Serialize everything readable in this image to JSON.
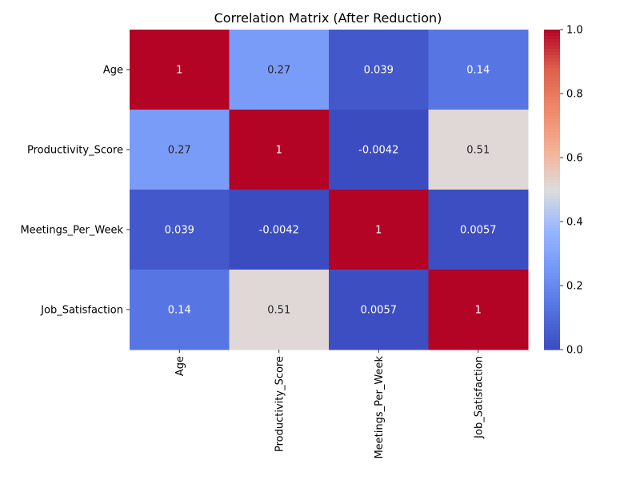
{
  "chart_data": {
    "type": "heatmap",
    "title": "Correlation Matrix (After Reduction)",
    "xlabel": "",
    "ylabel": "",
    "x_categories": [
      "Age",
      "Productivity_Score",
      "Meetings_Per_Week",
      "Job_Satisfaction"
    ],
    "y_categories": [
      "Age",
      "Productivity_Score",
      "Meetings_Per_Week",
      "Job_Satisfaction"
    ],
    "values": [
      [
        1,
        0.27,
        0.039,
        0.14
      ],
      [
        0.27,
        1,
        -0.0042,
        0.51
      ],
      [
        0.039,
        -0.0042,
        1,
        0.0057
      ],
      [
        0.14,
        0.51,
        0.0057,
        1
      ]
    ],
    "cell_labels": [
      [
        "1",
        "0.27",
        "0.039",
        "0.14"
      ],
      [
        "0.27",
        "1",
        "-0.0042",
        "0.51"
      ],
      [
        "0.039",
        "-0.0042",
        "1",
        "0.0057"
      ],
      [
        "0.14",
        "0.51",
        "0.0057",
        "1"
      ]
    ],
    "colormap": "coolwarm",
    "color_range": [
      0.0,
      1.0
    ],
    "colorbar_ticks": [
      {
        "value": 0.0,
        "label": "0.0"
      },
      {
        "value": 0.2,
        "label": "0.2"
      },
      {
        "value": 0.4,
        "label": "0.4"
      },
      {
        "value": 0.6,
        "label": "0.6"
      },
      {
        "value": 0.8,
        "label": "0.8"
      },
      {
        "value": 1.0,
        "label": "1.0"
      }
    ],
    "colorbar_location": "right",
    "grid": false
  }
}
